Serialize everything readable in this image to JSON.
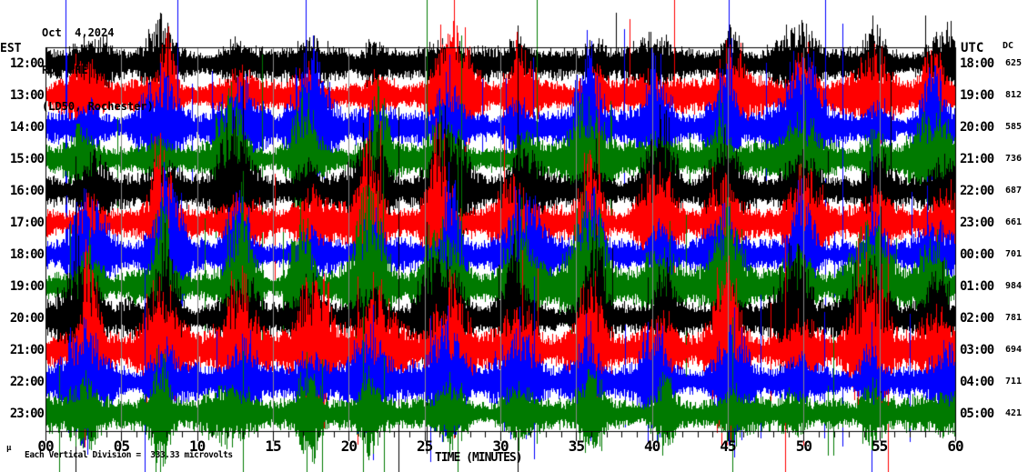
{
  "header": {
    "date": "Oct  4,2024",
    "station_line": "ROC HHE LD --",
    "location_line": "(LD50, Rochester)"
  },
  "axes": {
    "left_title": "EST",
    "right_title": "UTC",
    "dc_title": "DC",
    "x_title": "TIME (MINUTES)"
  },
  "footer": {
    "corner_mark": "µ",
    "scale_note": "Each Vertical Division =  333.33 microvolts"
  },
  "colors": {
    "background": "#ffffff",
    "text": "#000000",
    "grid": "#888888",
    "trace_palette": {
      "black": "#000000",
      "red": "#ff0000",
      "blue": "#0000ff",
      "green": "#007a00"
    }
  },
  "chart_data": {
    "type": "line",
    "subtype": "helicorder-seismogram",
    "title": "ROC HHE LD -- (LD50, Rochester) Oct  4,2024",
    "xlabel": "TIME (MINUTES)",
    "x_range_minutes": [
      0,
      60
    ],
    "x_ticks": [
      "00",
      "05",
      "10",
      "15",
      "20",
      "25",
      "30",
      "35",
      "40",
      "45",
      "50",
      "55",
      "60"
    ],
    "x_minor_tick_minutes": 1,
    "grid": "vertical gray lines every 5 minutes",
    "legend_position": "none",
    "vertical_division_microvolts": 333.33,
    "rows": [
      {
        "est": "12:00",
        "utc": "18:00",
        "dc": "625",
        "color": "black"
      },
      {
        "est": "13:00",
        "utc": "19:00",
        "dc": "812",
        "color": "red"
      },
      {
        "est": "14:00",
        "utc": "20:00",
        "dc": "585",
        "color": "blue"
      },
      {
        "est": "15:00",
        "utc": "21:00",
        "dc": "736",
        "color": "green"
      },
      {
        "est": "16:00",
        "utc": "22:00",
        "dc": "687",
        "color": "black"
      },
      {
        "est": "17:00",
        "utc": "23:00",
        "dc": "661",
        "color": "red"
      },
      {
        "est": "18:00",
        "utc": "00:00",
        "dc": "701",
        "color": "blue"
      },
      {
        "est": "19:00",
        "utc": "01:00",
        "dc": "984",
        "color": "green"
      },
      {
        "est": "20:00",
        "utc": "02:00",
        "dc": "781",
        "color": "black"
      },
      {
        "est": "21:00",
        "utc": "03:00",
        "dc": "694",
        "color": "red"
      },
      {
        "est": "22:00",
        "utc": "04:00",
        "dc": "711",
        "color": "blue"
      },
      {
        "est": "23:00",
        "utc": "05:00",
        "dc": "421",
        "color": "green"
      }
    ],
    "description": "Twelve hour-long traces of continuous high-amplitude seismic noise; quasi-periodic burst clusters repeat roughly every 4-5 minutes and align vertically across all hours, with occasional spikes spanning several trace rows."
  }
}
